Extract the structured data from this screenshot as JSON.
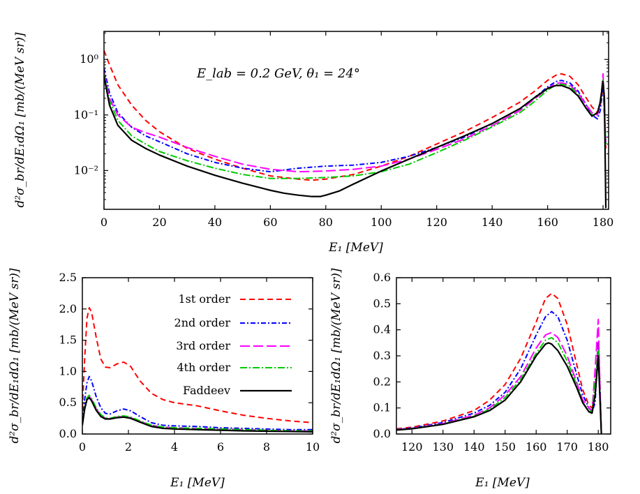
{
  "chart_data": [
    {
      "type": "line",
      "id": "top",
      "annotation": "E_lab = 0.2 GeV, θ₁ = 24°",
      "xlabel": "E₁ [MeV]",
      "ylabel": "d²σ_br/dE₁dΩ₁ [mb/(MeV sr)]",
      "xlim": [
        0,
        182
      ],
      "ylim": [
        0.002,
        3.2
      ],
      "yscale": "log",
      "xticks": [
        0,
        20,
        40,
        60,
        80,
        100,
        120,
        140,
        160,
        180
      ],
      "yticks": [
        {
          "v": 1,
          "t": "10⁰"
        },
        {
          "v": 0.1,
          "t": "10⁻¹"
        },
        {
          "v": 0.01,
          "t": "10⁻²"
        }
      ],
      "series": [
        {
          "name": "1st order",
          "color": "#ff0000",
          "dash": "8,5",
          "x": [
            0,
            2,
            5,
            10,
            15,
            20,
            30,
            40,
            50,
            60,
            70,
            75,
            80,
            90,
            100,
            110,
            120,
            130,
            140,
            150,
            155,
            160,
            163,
            165,
            168,
            171,
            174,
            176,
            178,
            179,
            180,
            181
          ],
          "y": [
            1.45,
            0.8,
            0.35,
            0.15,
            0.08,
            0.05,
            0.025,
            0.016,
            0.011,
            0.008,
            0.007,
            0.0067,
            0.007,
            0.0085,
            0.012,
            0.018,
            0.03,
            0.05,
            0.09,
            0.17,
            0.26,
            0.42,
            0.52,
            0.55,
            0.5,
            0.35,
            0.2,
            0.14,
            0.11,
            0.15,
            0.35,
            0.025
          ]
        },
        {
          "name": "2nd order",
          "color": "#0000ff",
          "dash": "7,3,2,3",
          "x": [
            0,
            2,
            5,
            10,
            15,
            20,
            30,
            40,
            50,
            60,
            70,
            80,
            90,
            100,
            110,
            120,
            130,
            140,
            150,
            155,
            160,
            163,
            165,
            168,
            171,
            174,
            176,
            178,
            179,
            180,
            181
          ],
          "y": [
            0.7,
            0.25,
            0.11,
            0.06,
            0.042,
            0.033,
            0.02,
            0.014,
            0.011,
            0.0095,
            0.011,
            0.012,
            0.0125,
            0.014,
            0.018,
            0.026,
            0.04,
            0.07,
            0.13,
            0.2,
            0.32,
            0.4,
            0.42,
            0.38,
            0.27,
            0.15,
            0.1,
            0.085,
            0.12,
            0.35,
            0.03
          ]
        },
        {
          "name": "3rd order",
          "color": "#ff00ff",
          "dash": "14,5",
          "x": [
            0,
            2,
            5,
            10,
            15,
            20,
            30,
            40,
            50,
            60,
            70,
            80,
            90,
            100,
            110,
            120,
            130,
            140,
            150,
            155,
            160,
            163,
            165,
            168,
            171,
            174,
            176,
            178,
            179,
            180,
            181
          ],
          "y": [
            0.6,
            0.2,
            0.1,
            0.06,
            0.048,
            0.04,
            0.026,
            0.018,
            0.013,
            0.0105,
            0.0095,
            0.0098,
            0.0105,
            0.012,
            0.016,
            0.024,
            0.037,
            0.064,
            0.12,
            0.19,
            0.3,
            0.37,
            0.38,
            0.35,
            0.25,
            0.15,
            0.11,
            0.1,
            0.16,
            0.55,
            0.03
          ]
        },
        {
          "name": "4th order",
          "color": "#00cc00",
          "dash": "10,3,2,3",
          "x": [
            0,
            2,
            5,
            10,
            15,
            20,
            30,
            40,
            50,
            60,
            70,
            80,
            90,
            100,
            110,
            120,
            130,
            140,
            150,
            155,
            160,
            163,
            165,
            168,
            171,
            174,
            176,
            178,
            179,
            180,
            181
          ],
          "y": [
            0.55,
            0.18,
            0.08,
            0.042,
            0.03,
            0.022,
            0.015,
            0.011,
            0.0085,
            0.0072,
            0.0072,
            0.0075,
            0.008,
            0.0095,
            0.013,
            0.021,
            0.035,
            0.061,
            0.11,
            0.17,
            0.28,
            0.35,
            0.36,
            0.33,
            0.23,
            0.13,
            0.1,
            0.11,
            0.18,
            0.45,
            0.03
          ]
        },
        {
          "name": "Faddeev",
          "color": "#000000",
          "dash": "",
          "x": [
            0,
            2,
            5,
            10,
            15,
            20,
            30,
            40,
            50,
            60,
            65,
            70,
            75,
            78,
            80,
            85,
            90,
            100,
            110,
            120,
            130,
            140,
            150,
            155,
            160,
            163,
            165,
            168,
            171,
            174,
            176,
            178,
            179,
            180,
            180.5,
            181
          ],
          "y": [
            0.5,
            0.15,
            0.065,
            0.035,
            0.025,
            0.019,
            0.012,
            0.0082,
            0.0059,
            0.0044,
            0.0039,
            0.0036,
            0.0034,
            0.0034,
            0.0036,
            0.0043,
            0.0057,
            0.0098,
            0.016,
            0.026,
            0.042,
            0.07,
            0.13,
            0.2,
            0.3,
            0.34,
            0.34,
            0.3,
            0.22,
            0.13,
            0.095,
            0.11,
            0.17,
            0.4,
            0.2,
            0.0021
          ]
        }
      ]
    },
    {
      "type": "line",
      "id": "bottom-left",
      "xlabel": "E₁ [MeV]",
      "ylabel": "d²σ_br/dE₁dΩ₁ [mb/(MeV sr)]",
      "xlim": [
        0,
        10
      ],
      "ylim": [
        0,
        2.5
      ],
      "xticks": [
        0,
        2,
        4,
        6,
        8,
        10
      ],
      "yticks": [
        0.0,
        0.5,
        1.0,
        1.5,
        2.0,
        2.5
      ],
      "ytick_labels": [
        "0.0",
        "0.5",
        "1.0",
        "1.5",
        "2.0",
        "2.5"
      ],
      "legend": {
        "placement": "top-right",
        "entries": [
          "1st order",
          "2nd order",
          "3rd order",
          "4th order",
          "Faddeev"
        ]
      },
      "series": [
        {
          "name": "1st order",
          "color": "#ff0000",
          "dash": "8,5",
          "x": [
            0,
            0.1,
            0.2,
            0.3,
            0.4,
            0.6,
            0.8,
            1.0,
            1.2,
            1.5,
            1.8,
            2.1,
            2.5,
            3.0,
            3.5,
            4.0,
            5.0,
            6.0,
            7.0,
            8.0,
            9.0,
            10.0
          ],
          "y": [
            0.4,
            1.2,
            1.85,
            2.02,
            1.95,
            1.55,
            1.2,
            1.07,
            1.06,
            1.12,
            1.15,
            1.08,
            0.85,
            0.65,
            0.55,
            0.5,
            0.45,
            0.37,
            0.3,
            0.25,
            0.21,
            0.18
          ]
        },
        {
          "name": "2nd order",
          "color": "#0000ff",
          "dash": "7,3,2,3",
          "x": [
            0,
            0.1,
            0.2,
            0.3,
            0.4,
            0.6,
            0.8,
            1.0,
            1.2,
            1.5,
            1.8,
            2.1,
            2.5,
            3.0,
            3.5,
            4.0,
            5.0,
            6.0,
            7.0,
            8.0,
            9.0,
            10.0
          ],
          "y": [
            0.2,
            0.55,
            0.82,
            0.92,
            0.85,
            0.6,
            0.42,
            0.33,
            0.32,
            0.37,
            0.4,
            0.37,
            0.28,
            0.18,
            0.14,
            0.13,
            0.12,
            0.1,
            0.09,
            0.08,
            0.07,
            0.07
          ]
        },
        {
          "name": "3rd order",
          "color": "#ff00ff",
          "dash": "14,5",
          "x": [
            0,
            0.1,
            0.2,
            0.3,
            0.4,
            0.6,
            0.8,
            1.0,
            1.2,
            1.5,
            1.8,
            2.1,
            2.5,
            3.0,
            3.5,
            4.0,
            5.0,
            6.0,
            7.0,
            8.0,
            9.0,
            10.0
          ],
          "y": [
            0.15,
            0.4,
            0.56,
            0.6,
            0.55,
            0.4,
            0.3,
            0.25,
            0.24,
            0.27,
            0.28,
            0.26,
            0.2,
            0.14,
            0.11,
            0.1,
            0.09,
            0.08,
            0.07,
            0.06,
            0.05,
            0.05
          ]
        },
        {
          "name": "4th order",
          "color": "#00cc00",
          "dash": "10,3,2,3",
          "x": [
            0,
            0.1,
            0.2,
            0.3,
            0.4,
            0.6,
            0.8,
            1.0,
            1.2,
            1.5,
            1.8,
            2.1,
            2.5,
            3.0,
            3.5,
            4.0,
            5.0,
            6.0,
            7.0,
            8.0,
            9.0,
            10.0
          ],
          "y": [
            0.15,
            0.42,
            0.58,
            0.62,
            0.57,
            0.42,
            0.31,
            0.26,
            0.25,
            0.28,
            0.29,
            0.27,
            0.21,
            0.14,
            0.11,
            0.1,
            0.09,
            0.08,
            0.07,
            0.06,
            0.05,
            0.05
          ]
        },
        {
          "name": "Faddeev",
          "color": "#000000",
          "dash": "",
          "x": [
            0,
            0.1,
            0.2,
            0.3,
            0.4,
            0.6,
            0.8,
            1.0,
            1.2,
            1.5,
            1.8,
            2.1,
            2.5,
            3.0,
            3.5,
            4.0,
            5.0,
            6.0,
            7.0,
            8.0,
            9.0,
            10.0
          ],
          "y": [
            0.14,
            0.4,
            0.55,
            0.58,
            0.53,
            0.38,
            0.28,
            0.24,
            0.24,
            0.26,
            0.27,
            0.25,
            0.19,
            0.12,
            0.09,
            0.08,
            0.07,
            0.06,
            0.05,
            0.045,
            0.04,
            0.035
          ]
        }
      ]
    },
    {
      "type": "line",
      "id": "bottom-right",
      "xlabel": "E₁ [MeV]",
      "ylabel": "d²σ_br/dE₁dΩ₁ [mb/(MeV sr)]",
      "xlim": [
        115,
        184
      ],
      "ylim": [
        0,
        0.6
      ],
      "xticks": [
        120,
        130,
        140,
        150,
        160,
        170,
        180
      ],
      "yticks": [
        0.0,
        0.1,
        0.2,
        0.3,
        0.4,
        0.5,
        0.6
      ],
      "ytick_labels": [
        "0.0",
        "0.1",
        "0.2",
        "0.3",
        "0.4",
        "0.5",
        "0.6"
      ],
      "series": [
        {
          "name": "1st order",
          "color": "#ff0000",
          "dash": "8,5",
          "x": [
            115,
            120,
            130,
            140,
            145,
            150,
            155,
            160,
            163,
            165,
            167,
            170,
            173,
            175,
            177,
            178,
            179,
            180,
            180.5,
            181
          ],
          "y": [
            0.02,
            0.026,
            0.05,
            0.09,
            0.13,
            0.19,
            0.29,
            0.43,
            0.52,
            0.54,
            0.52,
            0.42,
            0.27,
            0.17,
            0.11,
            0.1,
            0.15,
            0.35,
            0.2,
            0
          ]
        },
        {
          "name": "2nd order",
          "color": "#0000ff",
          "dash": "7,3,2,3",
          "x": [
            115,
            120,
            130,
            140,
            145,
            150,
            155,
            160,
            163,
            165,
            167,
            170,
            173,
            175,
            177,
            178,
            179,
            180,
            180.5,
            181
          ],
          "y": [
            0.018,
            0.023,
            0.044,
            0.08,
            0.11,
            0.16,
            0.25,
            0.38,
            0.45,
            0.47,
            0.45,
            0.36,
            0.23,
            0.15,
            0.1,
            0.085,
            0.12,
            0.35,
            0.2,
            0
          ]
        },
        {
          "name": "3rd order",
          "color": "#ff00ff",
          "dash": "14,5",
          "x": [
            115,
            120,
            130,
            140,
            145,
            150,
            155,
            160,
            163,
            165,
            167,
            170,
            173,
            175,
            177,
            178,
            179,
            180,
            180.5,
            181
          ],
          "y": [
            0.017,
            0.022,
            0.04,
            0.072,
            0.1,
            0.15,
            0.22,
            0.33,
            0.38,
            0.39,
            0.37,
            0.3,
            0.2,
            0.13,
            0.1,
            0.09,
            0.25,
            0.44,
            0.2,
            0
          ]
        },
        {
          "name": "4th order",
          "color": "#00cc00",
          "dash": "10,3,2,3",
          "x": [
            115,
            120,
            130,
            140,
            145,
            150,
            155,
            160,
            163,
            165,
            167,
            170,
            173,
            175,
            177,
            178,
            179,
            180,
            180.5,
            181
          ],
          "y": [
            0.016,
            0.021,
            0.038,
            0.068,
            0.095,
            0.14,
            0.21,
            0.31,
            0.36,
            0.37,
            0.35,
            0.28,
            0.19,
            0.12,
            0.09,
            0.085,
            0.2,
            0.32,
            0.15,
            0
          ]
        },
        {
          "name": "Faddeev",
          "color": "#000000",
          "dash": "",
          "x": [
            115,
            120,
            130,
            140,
            145,
            150,
            155,
            160,
            163,
            164,
            165,
            167,
            170,
            173,
            175,
            177,
            178,
            179,
            180,
            180.5,
            181
          ],
          "y": [
            0.015,
            0.02,
            0.037,
            0.066,
            0.09,
            0.13,
            0.2,
            0.3,
            0.345,
            0.35,
            0.345,
            0.32,
            0.26,
            0.18,
            0.12,
            0.085,
            0.08,
            0.15,
            0.3,
            0.15,
            0
          ]
        }
      ]
    }
  ]
}
